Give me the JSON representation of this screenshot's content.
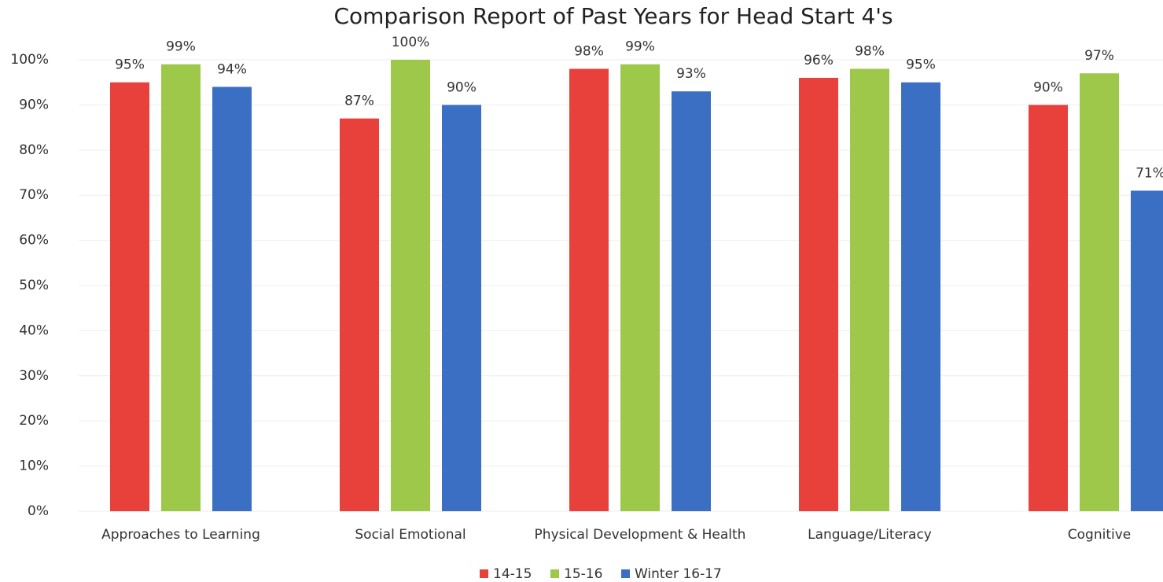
{
  "chart_data": {
    "type": "bar",
    "title": "Comparison Report of Past Years for Head Start 4's",
    "categories": [
      "Approaches to Learning",
      "Social Emotional",
      "Physical Development & Health",
      "Language/Literacy",
      "Cognitive"
    ],
    "series": [
      {
        "name": "14-15",
        "color": "#e8413c",
        "values": [
          95,
          87,
          98,
          96,
          90
        ],
        "value_labels": [
          "95%",
          "87%",
          "98%",
          "96%",
          "90%"
        ]
      },
      {
        "name": "15-16",
        "color": "#9dc84a",
        "values": [
          99,
          100,
          99,
          98,
          97
        ],
        "value_labels": [
          "99%",
          "100%",
          "99%",
          "98%",
          "97%"
        ]
      },
      {
        "name": "Winter 16-17",
        "color": "#3a6fc4",
        "values": [
          94,
          90,
          93,
          95,
          71
        ],
        "value_labels": [
          "94%",
          "90%",
          "93%",
          "95%",
          "71%"
        ]
      }
    ],
    "ylim": [
      0,
      100
    ],
    "yticks": [
      {
        "value": 0,
        "label": "0%"
      },
      {
        "value": 10,
        "label": "10%"
      },
      {
        "value": 20,
        "label": "20%"
      },
      {
        "value": 30,
        "label": "30%"
      },
      {
        "value": 40,
        "label": "40%"
      },
      {
        "value": 50,
        "label": "50%"
      },
      {
        "value": 60,
        "label": "60%"
      },
      {
        "value": 70,
        "label": "70%"
      },
      {
        "value": 80,
        "label": "80%"
      },
      {
        "value": 90,
        "label": "90%"
      },
      {
        "value": 100,
        "label": "100%"
      }
    ],
    "grid": true,
    "legend": "bottom"
  }
}
